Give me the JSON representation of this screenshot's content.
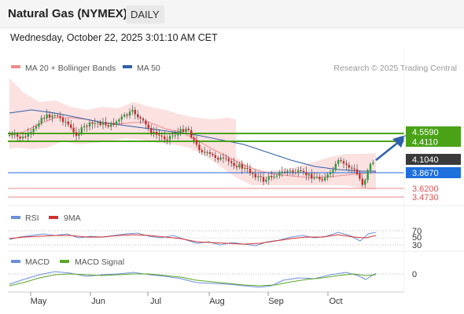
{
  "header": {
    "title": "Natural Gas (NYMEX)",
    "timeframe": "DAILY",
    "datetime": "Wednesday, October 22, 2025 3:01:10 AM CET"
  },
  "legend": {
    "ma20": "MA 20 + Bollinger Bands",
    "ma50": "MA 50",
    "credit": "Research © 2025 Trading Central",
    "rsi": "RSI",
    "rsi_ma": "9MA",
    "macd": "MACD",
    "macd_signal": "MACD Signal"
  },
  "colors": {
    "bullish": "#2e9e3c",
    "bearish": "#cc2a2a",
    "ma20": "#f08a8a",
    "ma50": "#2f5fa8",
    "band": "#fbdcdc",
    "resistance": "#4aa317",
    "pivot": "#1f6fdc",
    "support": "#f2a0a0",
    "rsi": "#6b8fdc",
    "rsi_ma": "#d23030",
    "macd": "#6b8fdc",
    "macd_signal": "#5aa52a"
  },
  "levels": {
    "resistance_2": "4.5590",
    "resistance_1": "4.4110",
    "last": "4.1040",
    "pivot": "3.8670",
    "support_1": "3.6200",
    "support_2": "3.4730"
  },
  "oscillator_ticks": {
    "rsi": [
      "70",
      "50",
      "30"
    ],
    "macd": [
      "0"
    ]
  },
  "chart_data": {
    "type": "candlestick",
    "x_labels": [
      "May",
      "Jun",
      "Jul",
      "Aug",
      "Sep",
      "Oct"
    ],
    "price_levels": {
      "resistance": [
        4.559,
        4.411
      ],
      "pivot": 3.867,
      "support": [
        3.62,
        3.473
      ],
      "last": 4.104
    },
    "price_range": [
      3.45,
      4.9
    ],
    "trend": "bullish",
    "rsi_levels": [
      70,
      50,
      30
    ],
    "macd_zero": 0
  }
}
